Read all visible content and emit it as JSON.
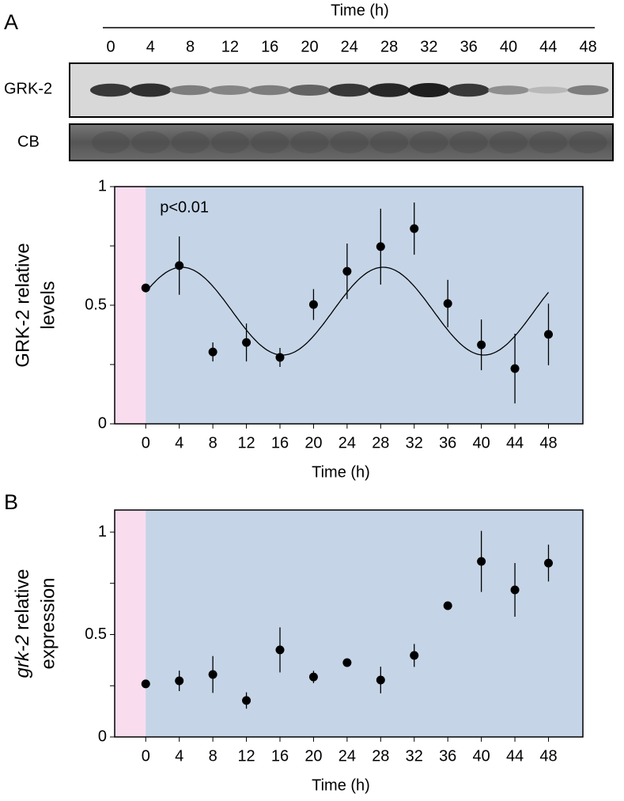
{
  "panel_labels": [
    "A",
    "B"
  ],
  "blot": {
    "title": "Time (h)",
    "lanes": [
      0,
      4,
      8,
      12,
      16,
      20,
      24,
      28,
      32,
      36,
      40,
      44,
      48
    ],
    "rows": [
      "GRK-2",
      "CB"
    ]
  },
  "chart_data": [
    {
      "type": "scatter",
      "annotation": "p<0.01",
      "x_label": "Time (h)",
      "y_label_lines": [
        "GRK-2 relative",
        "levels"
      ],
      "x": [
        0,
        4,
        8,
        12,
        16,
        20,
        24,
        28,
        32,
        36,
        40,
        44,
        48
      ],
      "series": [
        {
          "color": "#000000",
          "values": [
            0.573,
            0.667,
            0.303,
            0.343,
            0.28,
            0.503,
            0.643,
            0.747,
            0.823,
            0.507,
            0.333,
            0.233,
            0.377
          ],
          "errors": [
            0.012,
            0.123,
            0.04,
            0.08,
            0.04,
            0.065,
            0.117,
            0.16,
            0.11,
            0.1,
            0.107,
            0.147,
            0.13
          ]
        }
      ],
      "fit": {
        "mean": 0.475,
        "amplitude": 0.185,
        "period": 24,
        "peak": 4.3
      },
      "xlim": [
        -3.7,
        52.1
      ],
      "xticks": [
        0,
        4,
        8,
        12,
        16,
        20,
        24,
        28,
        32,
        36,
        40,
        44,
        48
      ],
      "ylim": [
        0,
        1
      ],
      "yticks": [
        0,
        0.5,
        1
      ],
      "yminor": [
        0.25,
        0.75
      ],
      "split_x": 0,
      "left_color": "#fadcef",
      "right_color": "#c5d5e7"
    },
    {
      "type": "scatter",
      "x_label": "Time (h)",
      "y_label": {
        "italic": "grk-2",
        "rest": "relative",
        "line2": "expression"
      },
      "x": [
        0,
        4,
        8,
        12,
        16,
        20,
        24,
        28,
        32,
        36,
        40,
        44,
        48
      ],
      "series": [
        {
          "color": "#000000",
          "values": [
            0.259,
            0.274,
            0.305,
            0.178,
            0.425,
            0.293,
            0.363,
            0.278,
            0.398,
            0.641,
            0.857,
            0.718,
            0.849
          ],
          "errors": [
            0.02,
            0.05,
            0.09,
            0.04,
            0.11,
            0.03,
            0.01,
            0.065,
            0.056,
            0.01,
            0.149,
            0.131,
            0.09
          ]
        }
      ],
      "xlim": [
        -3.7,
        52.1
      ],
      "xticks": [
        0,
        4,
        8,
        12,
        16,
        20,
        24,
        28,
        32,
        36,
        40,
        44,
        48
      ],
      "ylim": [
        0,
        1.108
      ],
      "yticks": [
        0,
        0.5,
        1
      ],
      "yminor": [
        0.25,
        0.75
      ],
      "split_x": 0,
      "left_color": "#fadcef",
      "right_color": "#c5d5e7"
    }
  ]
}
